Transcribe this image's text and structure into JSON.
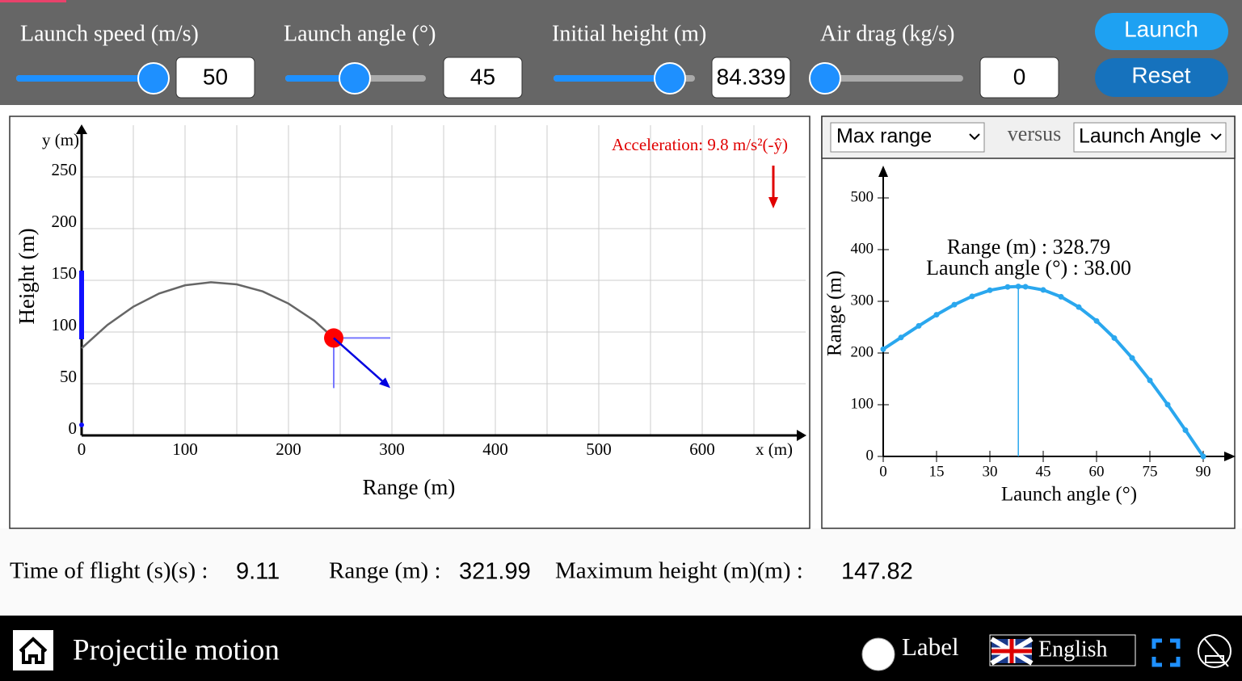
{
  "controls": [
    {
      "label": "Launch speed (m/s)",
      "value": 50
    },
    {
      "label": "Launch angle (°)",
      "value": 45
    },
    {
      "label": "Initial height (m)",
      "value": 84.339
    },
    {
      "label": "Air drag (kg/s)",
      "value": 0
    }
  ],
  "buttons": {
    "launch": "Launch",
    "reset": "Reset"
  },
  "main_plot": {
    "x_axis_unit": "x (m)",
    "y_axis_unit": "y (m)",
    "x_label": "Range (m)",
    "y_label": "Height (m)",
    "acceleration": "Acceleration: 9.8 m/s²(-ŷ)",
    "xlim": [
      0,
      700
    ],
    "ylim": [
      0,
      300
    ],
    "xticks": [
      0,
      100,
      200,
      300,
      400,
      500,
      600
    ],
    "yticks": [
      0,
      50,
      100,
      150,
      200,
      250
    ],
    "trajectory": {
      "x": [
        0,
        25,
        50,
        75,
        100,
        125,
        150,
        175,
        200,
        225,
        243.75
      ],
      "y": [
        84.3,
        106.9,
        124.5,
        137.3,
        145.2,
        148.1,
        146.1,
        139.3,
        127.5,
        110.9,
        94.2
      ]
    },
    "projectile": {
      "x": 243.75,
      "y": 94.2
    }
  },
  "side_plot": {
    "y_select": "Max range",
    "versus": "versus",
    "x_select": "Launch Angle",
    "x_label": "Launch angle (°)",
    "y_label": "Range (m)",
    "xlim": [
      0,
      98
    ],
    "ylim": [
      0,
      560
    ],
    "xticks": [
      0,
      15,
      30,
      45,
      60,
      75,
      90
    ],
    "yticks": [
      0,
      100,
      200,
      300,
      400,
      500
    ],
    "curve": {
      "x": [
        0,
        5,
        10,
        15,
        20,
        25,
        30,
        35,
        38,
        40,
        45,
        50,
        55,
        60,
        65,
        70,
        75,
        80,
        85,
        90
      ],
      "y": [
        207.4,
        230.0,
        252.5,
        274.1,
        293.5,
        309.6,
        321.4,
        327.8,
        328.79,
        328.2,
        321.99,
        308.8,
        288.8,
        262.0,
        229.0,
        190.4,
        147.1,
        100.2,
        50.8,
        0
      ]
    },
    "readout": {
      "range": {
        "name": "Range (m) :",
        "value": 328.79
      },
      "angle": {
        "name": "Launch angle (°) :",
        "value": 38,
        "label": "38.00"
      }
    }
  },
  "results": [
    {
      "label": "Time of flight (s)(s) :",
      "value": 9.11
    },
    {
      "label": "Range (m) :",
      "value": 321.99
    },
    {
      "label": "Maximum height (m)(m) :",
      "value": 147.82
    }
  ],
  "footer": {
    "title": "Projectile motion",
    "label_toggle": "Label",
    "language": "English"
  }
}
